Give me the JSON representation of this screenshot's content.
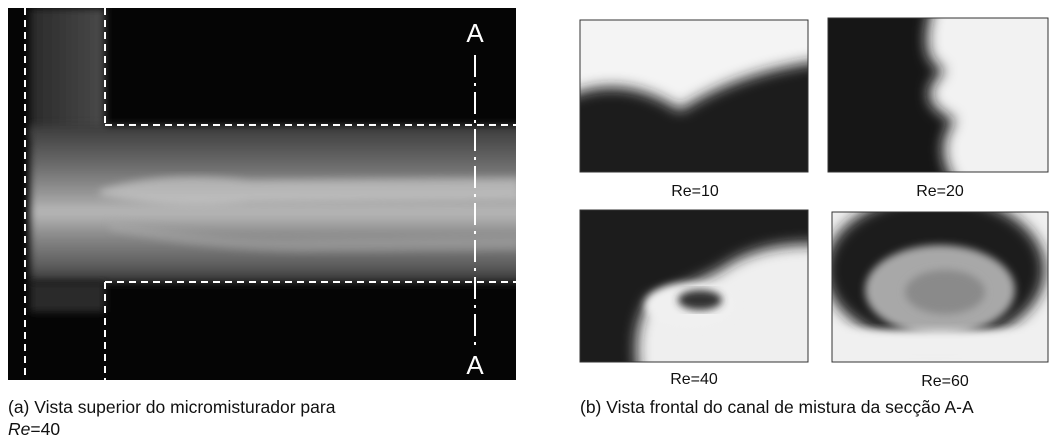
{
  "panel_a": {
    "section_top": "A",
    "section_bottom": "A",
    "caption": {
      "prefix": "(a) Vista superior do micromisturador para",
      "italic": "Re",
      "suffix": "=40"
    }
  },
  "panel_b": {
    "labels": [
      "Re=10",
      "Re=20",
      "Re=40",
      "Re=60"
    ],
    "caption": "(b) Vista frontal do canal de mistura da secção A-A"
  }
}
